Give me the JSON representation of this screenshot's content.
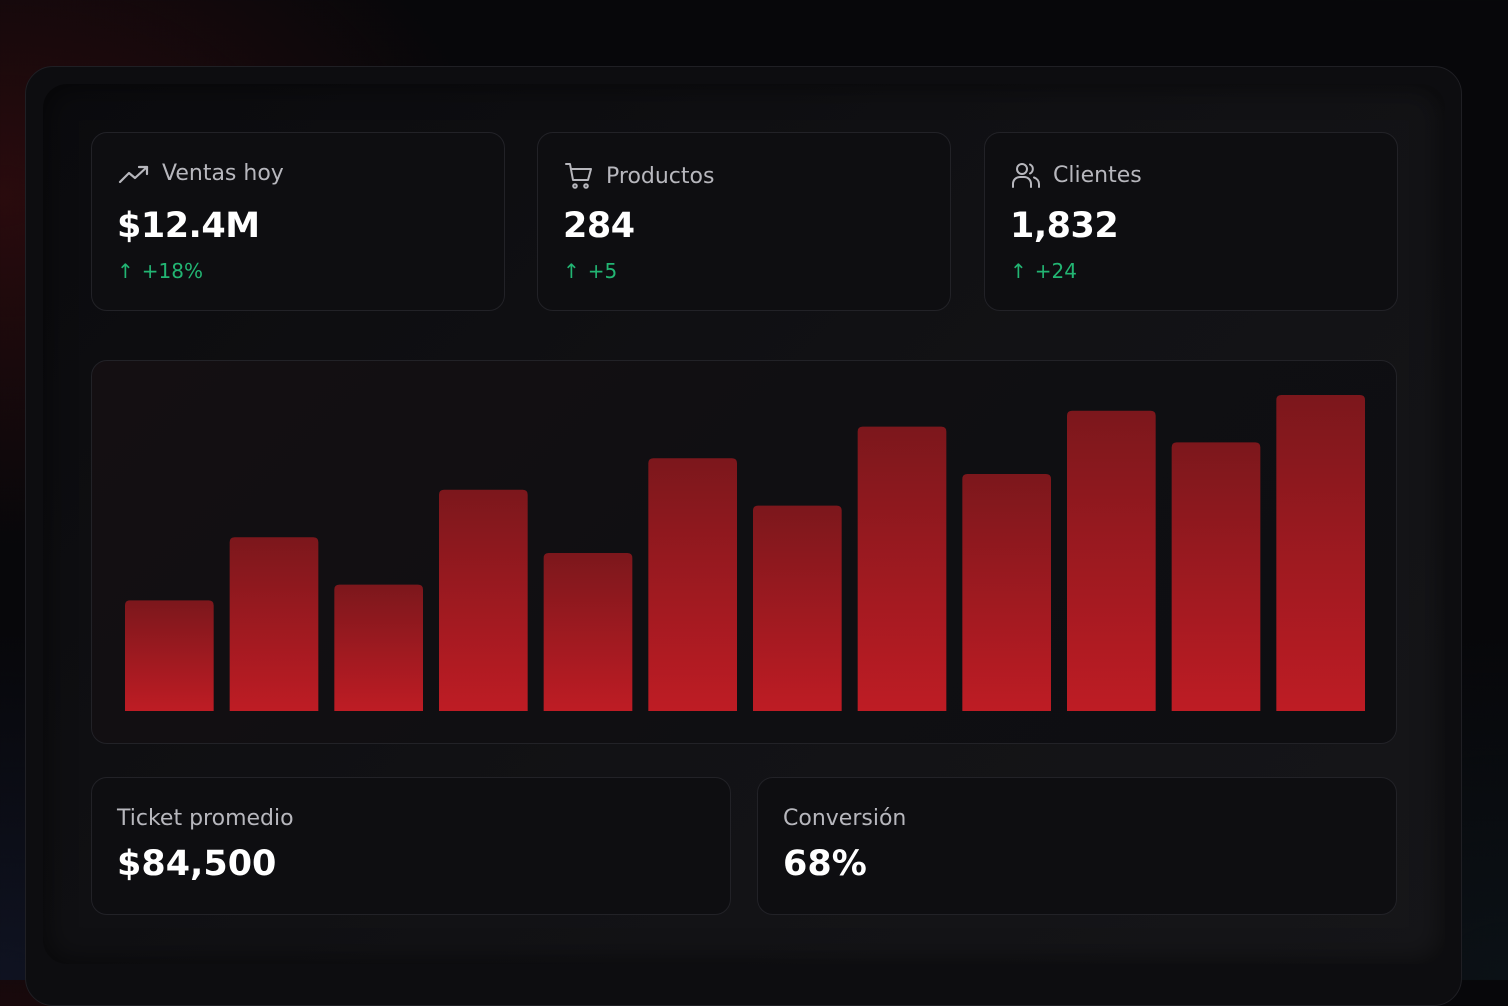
{
  "stats": [
    {
      "label": "Ventas hoy",
      "value": "$12.4M",
      "change": "+18%",
      "icon": "trending-up-icon"
    },
    {
      "label": "Productos",
      "value": "284",
      "change": "+5",
      "icon": "shopping-cart-icon"
    },
    {
      "label": "Clientes",
      "value": "1,832",
      "change": "+24",
      "icon": "users-icon"
    }
  ],
  "change_arrow": "↑",
  "colors": {
    "positive": "#22b573",
    "bar_top": "#7c171c",
    "bar_bottom": "#be1c24"
  },
  "chart_data": {
    "type": "bar",
    "values": [
      35,
      55,
      40,
      70,
      50,
      80,
      65,
      90,
      75,
      95,
      85,
      100
    ],
    "ylim": [
      0,
      100
    ],
    "grid": false,
    "legend": "none"
  },
  "summary": {
    "ticket": {
      "label": "Ticket promedio",
      "value": "$84,500"
    },
    "conversion": {
      "label": "Conversión",
      "value": "68%"
    }
  }
}
